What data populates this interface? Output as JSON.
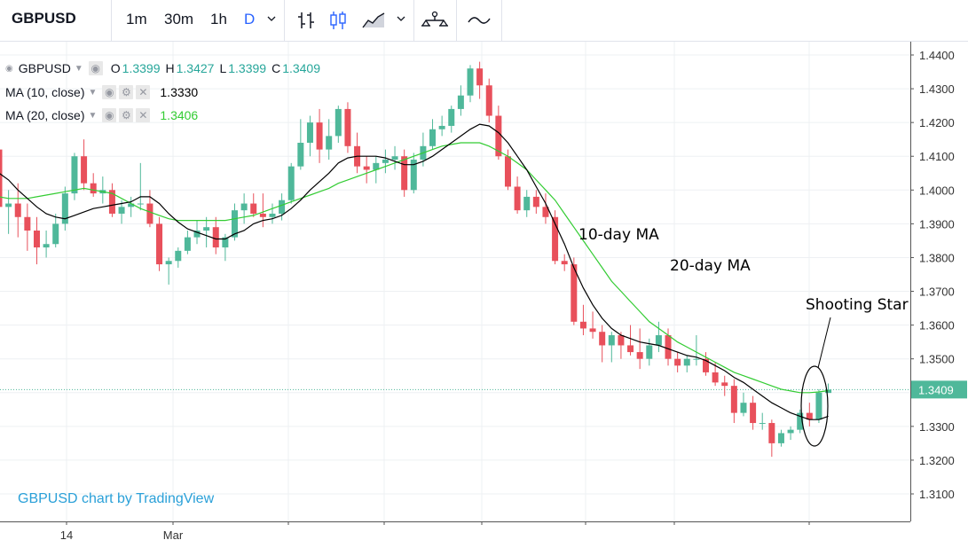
{
  "toolbar": {
    "symbol": "GBPUSD",
    "intervals": [
      {
        "label": "1m",
        "active": false
      },
      {
        "label": "30m",
        "active": false
      },
      {
        "label": "1h",
        "active": false
      },
      {
        "label": "D",
        "active": true
      }
    ],
    "icons": [
      "chevron-down-icon",
      "bar-chart-icon",
      "candlestick-icon",
      "area-chart-icon",
      "chevron-down-icon",
      "indicators-icon",
      "compare-icon"
    ]
  },
  "legend": {
    "symbol": "GBPUSD",
    "ohlc": {
      "o_label": "O",
      "o": "1.3399",
      "h_label": "H",
      "h": "1.3427",
      "l_label": "L",
      "l": "1.3399",
      "c_label": "C",
      "c": "1.3409"
    },
    "ma10": {
      "label": "MA (10, close)",
      "value": "1.3330",
      "color": "#000000"
    },
    "ma20": {
      "label": "MA (20, close)",
      "value": "1.3406",
      "color": "#33cc33"
    }
  },
  "attribution": "GBPUSD chart by TradingView",
  "annotations": {
    "ma10": "10-day MA",
    "ma20": "20-day MA",
    "shooting_star": "Shooting Star"
  },
  "chart_data": {
    "type": "candlestick",
    "title": "",
    "xlabel": "",
    "ylabel": "",
    "ylim": [
      1.305,
      1.443
    ],
    "y_ticks": [
      "1.4400",
      "1.4300",
      "1.4200",
      "1.4100",
      "1.4000",
      "1.3900",
      "1.3800",
      "1.3700",
      "1.3600",
      "1.3500",
      "1.3400",
      "1.3300",
      "1.3200",
      "1.3100"
    ],
    "x_ticks": [
      "14",
      "Mar"
    ],
    "last_price": "1.3409",
    "grid": true,
    "up_color": "#4fb89a",
    "down_color": "#e8505b",
    "candles": [
      [
        1.412,
        1.415,
        1.39,
        1.395
      ],
      [
        1.395,
        1.4,
        1.387,
        1.396
      ],
      [
        1.396,
        1.402,
        1.386,
        1.392
      ],
      [
        1.392,
        1.396,
        1.382,
        1.388
      ],
      [
        1.388,
        1.392,
        1.378,
        1.383
      ],
      [
        1.383,
        1.388,
        1.38,
        1.384
      ],
      [
        1.384,
        1.393,
        1.383,
        1.39
      ],
      [
        1.39,
        1.401,
        1.388,
        1.399
      ],
      [
        1.399,
        1.411,
        1.397,
        1.41
      ],
      [
        1.41,
        1.415,
        1.4,
        1.402
      ],
      [
        1.402,
        1.405,
        1.398,
        1.399
      ],
      [
        1.399,
        1.404,
        1.396,
        1.4
      ],
      [
        1.4,
        1.402,
        1.392,
        1.393
      ],
      [
        1.393,
        1.397,
        1.39,
        1.395
      ],
      [
        1.395,
        1.398,
        1.392,
        1.396
      ],
      [
        1.396,
        1.408,
        1.394,
        1.396
      ],
      [
        1.396,
        1.4,
        1.389,
        1.39
      ],
      [
        1.39,
        1.392,
        1.376,
        1.378
      ],
      [
        1.378,
        1.38,
        1.372,
        1.379
      ],
      [
        1.379,
        1.383,
        1.377,
        1.382
      ],
      [
        1.382,
        1.388,
        1.381,
        1.386
      ],
      [
        1.386,
        1.391,
        1.384,
        1.388
      ],
      [
        1.388,
        1.392,
        1.383,
        1.389
      ],
      [
        1.389,
        1.392,
        1.381,
        1.383
      ],
      [
        1.383,
        1.387,
        1.379,
        1.386
      ],
      [
        1.386,
        1.396,
        1.385,
        1.394
      ],
      [
        1.394,
        1.399,
        1.39,
        1.396
      ],
      [
        1.396,
        1.399,
        1.392,
        1.393
      ],
      [
        1.393,
        1.399,
        1.389,
        1.392
      ],
      [
        1.392,
        1.396,
        1.39,
        1.393
      ],
      [
        1.393,
        1.399,
        1.391,
        1.397
      ],
      [
        1.397,
        1.408,
        1.396,
        1.407
      ],
      [
        1.407,
        1.421,
        1.406,
        1.414
      ],
      [
        1.414,
        1.422,
        1.41,
        1.42
      ],
      [
        1.42,
        1.424,
        1.408,
        1.412
      ],
      [
        1.412,
        1.421,
        1.409,
        1.416
      ],
      [
        1.416,
        1.425,
        1.414,
        1.424
      ],
      [
        1.424,
        1.426,
        1.411,
        1.413
      ],
      [
        1.413,
        1.417,
        1.405,
        1.407
      ],
      [
        1.407,
        1.41,
        1.402,
        1.406
      ],
      [
        1.406,
        1.41,
        1.402,
        1.408
      ],
      [
        1.408,
        1.412,
        1.405,
        1.409
      ],
      [
        1.409,
        1.413,
        1.406,
        1.41
      ],
      [
        1.41,
        1.412,
        1.398,
        1.4
      ],
      [
        1.4,
        1.411,
        1.399,
        1.409
      ],
      [
        1.409,
        1.417,
        1.407,
        1.413
      ],
      [
        1.413,
        1.421,
        1.412,
        1.418
      ],
      [
        1.418,
        1.422,
        1.416,
        1.419
      ],
      [
        1.419,
        1.425,
        1.417,
        1.424
      ],
      [
        1.424,
        1.431,
        1.422,
        1.428
      ],
      [
        1.428,
        1.437,
        1.426,
        1.436
      ],
      [
        1.436,
        1.438,
        1.427,
        1.431
      ],
      [
        1.431,
        1.433,
        1.42,
        1.422
      ],
      [
        1.422,
        1.425,
        1.409,
        1.41
      ],
      [
        1.41,
        1.412,
        1.4,
        1.401
      ],
      [
        1.401,
        1.404,
        1.393,
        1.394
      ],
      [
        1.394,
        1.4,
        1.392,
        1.398
      ],
      [
        1.398,
        1.4,
        1.393,
        1.395
      ],
      [
        1.395,
        1.399,
        1.39,
        1.392
      ],
      [
        1.392,
        1.394,
        1.378,
        1.379
      ],
      [
        1.379,
        1.381,
        1.376,
        1.378
      ],
      [
        1.378,
        1.38,
        1.36,
        1.361
      ],
      [
        1.361,
        1.366,
        1.357,
        1.359
      ],
      [
        1.359,
        1.364,
        1.356,
        1.358
      ],
      [
        1.358,
        1.36,
        1.349,
        1.354
      ],
      [
        1.354,
        1.358,
        1.349,
        1.357
      ],
      [
        1.357,
        1.358,
        1.35,
        1.354
      ],
      [
        1.354,
        1.36,
        1.351,
        1.352
      ],
      [
        1.352,
        1.359,
        1.347,
        1.35
      ],
      [
        1.35,
        1.356,
        1.348,
        1.354
      ],
      [
        1.354,
        1.361,
        1.352,
        1.357
      ],
      [
        1.357,
        1.359,
        1.348,
        1.35
      ],
      [
        1.35,
        1.352,
        1.346,
        1.348
      ],
      [
        1.348,
        1.351,
        1.346,
        1.35
      ],
      [
        1.35,
        1.357,
        1.348,
        1.35
      ],
      [
        1.35,
        1.352,
        1.345,
        1.346
      ],
      [
        1.346,
        1.349,
        1.342,
        1.343
      ],
      [
        1.343,
        1.345,
        1.339,
        1.342
      ],
      [
        1.342,
        1.344,
        1.331,
        1.334
      ],
      [
        1.334,
        1.34,
        1.333,
        1.337
      ],
      [
        1.337,
        1.339,
        1.329,
        1.331
      ],
      [
        1.331,
        1.334,
        1.329,
        1.331
      ],
      [
        1.331,
        1.332,
        1.321,
        1.325
      ],
      [
        1.325,
        1.329,
        1.324,
        1.328
      ],
      [
        1.328,
        1.33,
        1.326,
        1.329
      ],
      [
        1.329,
        1.335,
        1.328,
        1.334
      ],
      [
        1.334,
        1.337,
        1.33,
        1.332
      ],
      [
        1.332,
        1.341,
        1.331,
        1.34
      ],
      [
        1.3399,
        1.3427,
        1.3399,
        1.3409
      ]
    ],
    "ma10": [
      1.405,
      1.403,
      1.4,
      1.3975,
      1.395,
      1.393,
      1.392,
      1.3915,
      1.3925,
      1.3935,
      1.3945,
      1.395,
      1.3955,
      1.396,
      1.3965,
      1.398,
      1.398,
      1.396,
      1.393,
      1.3905,
      1.3885,
      1.3875,
      1.3865,
      1.3855,
      1.3855,
      1.387,
      1.388,
      1.39,
      1.391,
      1.3915,
      1.3925,
      1.3945,
      1.397,
      1.4,
      1.4025,
      1.405,
      1.408,
      1.4095,
      1.41,
      1.41,
      1.41,
      1.4095,
      1.4085,
      1.4075,
      1.4075,
      1.4085,
      1.41,
      1.412,
      1.414,
      1.416,
      1.418,
      1.4195,
      1.419,
      1.417,
      1.414,
      1.41,
      1.406,
      1.401,
      1.396,
      1.39,
      1.384,
      1.377,
      1.371,
      1.366,
      1.362,
      1.359,
      1.357,
      1.356,
      1.355,
      1.3545,
      1.354,
      1.353,
      1.352,
      1.351,
      1.3505,
      1.3495,
      1.348,
      1.3465,
      1.3445,
      1.343,
      1.341,
      1.339,
      1.337,
      1.3355,
      1.334,
      1.333,
      1.332,
      1.332,
      1.333
    ],
    "ma20": [
      1.398,
      1.3975,
      1.3975,
      1.3975,
      1.398,
      1.3985,
      1.399,
      1.3995,
      1.4,
      1.4005,
      1.4,
      1.3995,
      1.399,
      1.3975,
      1.396,
      1.3945,
      1.3935,
      1.3925,
      1.3915,
      1.391,
      1.391,
      1.391,
      1.391,
      1.391,
      1.391,
      1.3915,
      1.392,
      1.3925,
      1.3935,
      1.3945,
      1.3955,
      1.3965,
      1.3975,
      1.3985,
      1.3995,
      1.4005,
      1.402,
      1.403,
      1.404,
      1.405,
      1.406,
      1.407,
      1.408,
      1.409,
      1.41,
      1.411,
      1.412,
      1.413,
      1.4135,
      1.414,
      1.414,
      1.414,
      1.413,
      1.4115,
      1.41,
      1.408,
      1.406,
      1.403,
      1.4,
      1.397,
      1.393,
      1.389,
      1.385,
      1.381,
      1.377,
      1.373,
      1.37,
      1.367,
      1.364,
      1.361,
      1.359,
      1.357,
      1.355,
      1.3535,
      1.352,
      1.3505,
      1.349,
      1.3475,
      1.346,
      1.345,
      1.344,
      1.343,
      1.342,
      1.341,
      1.3405,
      1.34,
      1.34,
      1.3402,
      1.3406
    ]
  }
}
